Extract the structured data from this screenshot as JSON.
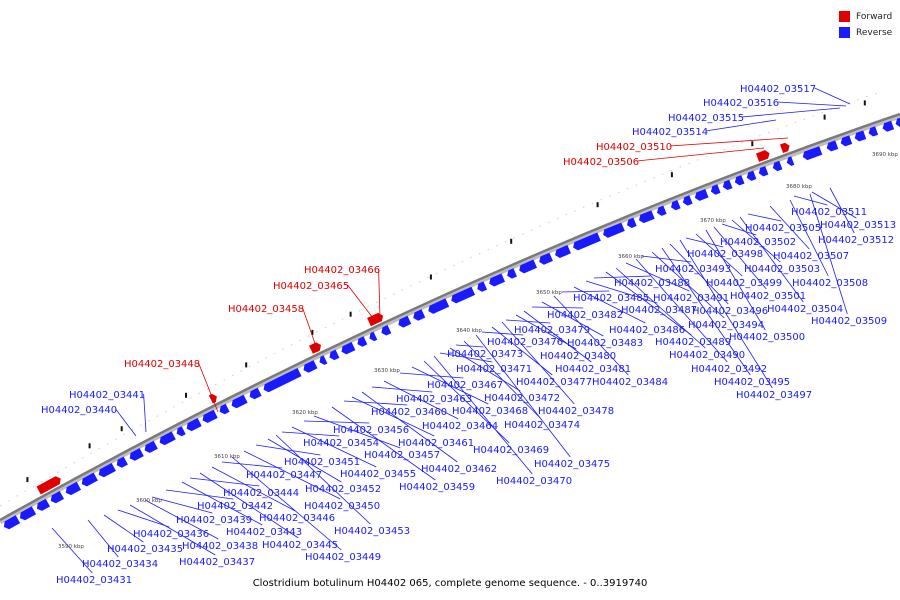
{
  "legend": {
    "forward": {
      "label": "Forward",
      "color": "#e00000"
    },
    "reverse": {
      "label": "Reverse",
      "color": "#1a1aff"
    }
  },
  "caption": "Clostridium botulinum H04402 065, complete genome sequence. - 0..3919740",
  "ticks": [
    "3590 kbp",
    "3600 kbp",
    "3610 kbp",
    "3620 kbp",
    "3630 kbp",
    "3640 kbp",
    "3650 kbp",
    "3660 kbp",
    "3670 kbp",
    "3680 kbp",
    "3690 kbp"
  ],
  "forward_genes": [
    "H04402_03448",
    "H04402_03458",
    "H04402_03465",
    "H04402_03466",
    "H04402_03506",
    "H04402_03510"
  ],
  "reverse_genes": [
    "H04402_03431",
    "H04402_03434",
    "H04402_03435",
    "H04402_03436",
    "H04402_03437",
    "H04402_03438",
    "H04402_03439",
    "H04402_03440",
    "H04402_03441",
    "H04402_03442",
    "H04402_03443",
    "H04402_03444",
    "H04402_03445",
    "H04402_03446",
    "H04402_03447",
    "H04402_03449",
    "H04402_03450",
    "H04402_03451",
    "H04402_03452",
    "H04402_03453",
    "H04402_03454",
    "H04402_03455",
    "H04402_03456",
    "H04402_03457",
    "H04402_03459",
    "H04402_03460",
    "H04402_03461",
    "H04402_03462",
    "H04402_03463",
    "H04402_03464",
    "H04402_03467",
    "H04402_03468",
    "H04402_03469",
    "H04402_03470",
    "H04402_03471",
    "H04402_03472",
    "H04402_03473",
    "H04402_03474",
    "H04402_03475",
    "H04402_03476",
    "H04402_03477",
    "H04402_03478",
    "H04402_03479",
    "H04402_03480",
    "H04402_03481",
    "H04402_03482",
    "H04402_03483",
    "H04402_03484",
    "H04402_03485",
    "H04402_03486",
    "H04402_03487",
    "H04402_03488",
    "H04402_03489",
    "H04402_03490",
    "H04402_03491",
    "H04402_03492",
    "H04402_03493",
    "H04402_03494",
    "H04402_03495",
    "H04402_03496",
    "H04402_03497",
    "H04402_03498",
    "H04402_03499",
    "H04402_03500",
    "H04402_03501",
    "H04402_03502",
    "H04402_03503",
    "H04402_03504",
    "H04402_03505",
    "H04402_03507",
    "H04402_03508",
    "H04402_03509",
    "H04402_03511",
    "H04402_03512",
    "H04402_03513",
    "H04402_03514",
    "H04402_03515",
    "H04402_03516",
    "H04402_03517"
  ]
}
